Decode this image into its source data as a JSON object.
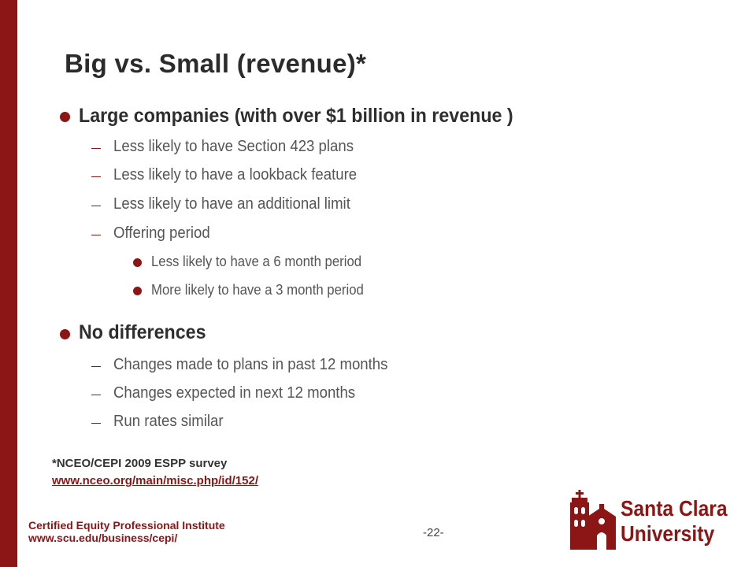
{
  "slide": {
    "title": "Big vs. Small (revenue)*",
    "sections": [
      {
        "heading": "Large companies (with over $1 billion in revenue )",
        "items": [
          "Less likely to have Section 423 plans",
          "Less likely to have a lookback feature",
          "Less likely to have an additional limit",
          "Offering period"
        ],
        "subitems": [
          "Less likely to have a 6 month period",
          "More likely to have a 3 month period"
        ]
      },
      {
        "heading": "No differences",
        "items": [
          "Changes made to plans in past 12 months",
          "Changes expected in next 12 months",
          "Run rates similar"
        ]
      }
    ],
    "footnote": "*NCEO/CEPI 2009 ESPP survey",
    "footnote_link": "www.nceo.org/main/misc.php/id/152/",
    "footer_org": "Certified Equity Professional Institute",
    "footer_url": "www.scu.edu/business/cepi/",
    "page_number": "-22-",
    "logo_line1": "Santa Clara",
    "logo_line2": "University"
  },
  "colors": {
    "accent": "#8c1515",
    "title_text": "#2b2b2b",
    "body_text": "#555555"
  },
  "icons": {
    "level1_bullet": "filled-circle",
    "level2_bullet": "dash",
    "level3_bullet": "filled-circle",
    "logo": "mission-building-icon"
  }
}
